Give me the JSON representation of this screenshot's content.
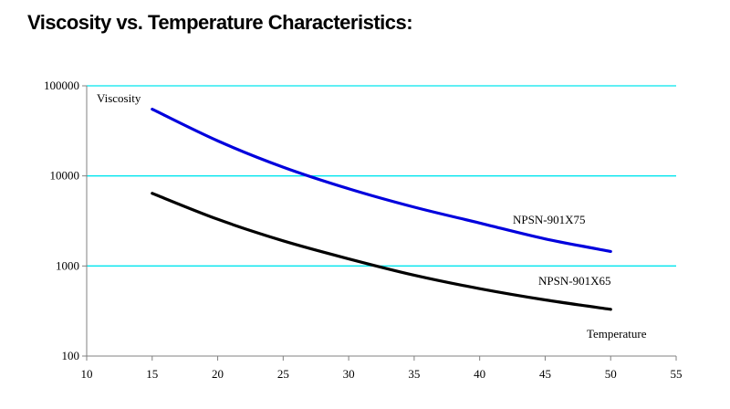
{
  "page": {
    "title": "Viscosity vs. Temperature Characteristics:"
  },
  "chart_data": {
    "type": "line",
    "title": "Viscosity vs. Temperature Characteristics:",
    "xlabel": "Temperature",
    "ylabel": "Viscosity",
    "xlim": [
      10,
      55
    ],
    "ylim": [
      100,
      100000
    ],
    "yscale": "log",
    "x_ticks": [
      10,
      15,
      20,
      25,
      30,
      35,
      40,
      45,
      50,
      55
    ],
    "y_ticks": [
      100,
      1000,
      10000,
      100000
    ],
    "x_tick_labels": [
      "10",
      "15",
      "20",
      "25",
      "30",
      "35",
      "40",
      "45",
      "50",
      "55"
    ],
    "y_tick_labels": [
      "100",
      "1000",
      "10000",
      "100000"
    ],
    "grid": "horizontal",
    "grid_color": "#00e5ee",
    "axis_color": "#808080",
    "series": [
      {
        "name": "NPSN-901X75",
        "color": "#0000dd",
        "x": [
          15,
          20,
          25,
          30,
          35,
          40,
          45,
          50
        ],
        "y": [
          55000,
          24500,
          12500,
          7200,
          4500,
          3000,
          2000,
          1450
        ]
      },
      {
        "name": "NPSN-901X65",
        "color": "#000000",
        "x": [
          15,
          20,
          25,
          30,
          35,
          40,
          45,
          50
        ],
        "y": [
          6400,
          3300,
          1900,
          1200,
          790,
          560,
          420,
          330
        ]
      }
    ]
  }
}
